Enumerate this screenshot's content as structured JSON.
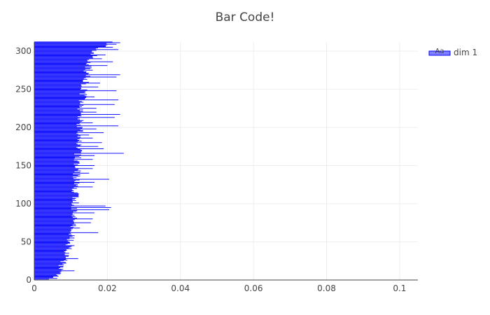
{
  "chart_data": {
    "type": "bar",
    "orientation": "horizontal",
    "title": "Bar Code!",
    "xlabel": "",
    "ylabel": "",
    "xlim": [
      0,
      0.105
    ],
    "ylim": [
      0,
      312
    ],
    "x_ticks": [
      0,
      0.02,
      0.04,
      0.06,
      0.08,
      0.1
    ],
    "x_tick_labels": [
      "0",
      "0.02",
      "0.04",
      "0.06",
      "0.08",
      "0.1"
    ],
    "y_ticks": [
      0,
      50,
      100,
      150,
      200,
      250,
      300
    ],
    "y_tick_labels": [
      "0",
      "50",
      "100",
      "150",
      "200",
      "250",
      "300"
    ],
    "grid": true,
    "legend_position": "top-right",
    "series": [
      {
        "name": "dim 1",
        "color": "#0000ff",
        "legend_icon_text": "Aa",
        "bar_count": 312,
        "base_anchors": [
          [
            1,
            0.004
          ],
          [
            5,
            0.005
          ],
          [
            10,
            0.0058
          ],
          [
            20,
            0.0066
          ],
          [
            30,
            0.0073
          ],
          [
            40,
            0.0081
          ],
          [
            50,
            0.0087
          ],
          [
            60,
            0.0091
          ],
          [
            70,
            0.0094
          ],
          [
            80,
            0.0096
          ],
          [
            90,
            0.0098
          ],
          [
            100,
            0.01
          ],
          [
            120,
            0.0103
          ],
          [
            150,
            0.0107
          ],
          [
            180,
            0.011
          ],
          [
            200,
            0.0112
          ],
          [
            220,
            0.0116
          ],
          [
            240,
            0.0122
          ],
          [
            260,
            0.0129
          ],
          [
            280,
            0.0136
          ],
          [
            290,
            0.0145
          ],
          [
            300,
            0.0158
          ],
          [
            305,
            0.0172
          ],
          [
            310,
            0.0188
          ],
          [
            312,
            0.0195
          ]
        ],
        "spikes": [
          [
            12,
            0.011
          ],
          [
            28,
            0.012
          ],
          [
            45,
            0.011
          ],
          [
            55,
            0.011
          ],
          [
            62,
            0.0175
          ],
          [
            68,
            0.0125
          ],
          [
            75,
            0.0155
          ],
          [
            80,
            0.016
          ],
          [
            88,
            0.0165
          ],
          [
            92,
            0.0205
          ],
          [
            95,
            0.021
          ],
          [
            97,
            0.0195
          ],
          [
            103,
            0.0105
          ],
          [
            122,
            0.016
          ],
          [
            128,
            0.0165
          ],
          [
            132,
            0.0205
          ],
          [
            140,
            0.015
          ],
          [
            146,
            0.016
          ],
          [
            150,
            0.0165
          ],
          [
            158,
            0.016
          ],
          [
            163,
            0.0165
          ],
          [
            166,
            0.0245
          ],
          [
            172,
            0.019
          ],
          [
            175,
            0.0175
          ],
          [
            180,
            0.0185
          ],
          [
            186,
            0.016
          ],
          [
            190,
            0.015
          ],
          [
            193,
            0.019
          ],
          [
            198,
            0.017
          ],
          [
            202,
            0.023
          ],
          [
            206,
            0.016
          ],
          [
            213,
            0.022
          ],
          [
            217,
            0.0235
          ],
          [
            220,
            0.017
          ],
          [
            225,
            0.017
          ],
          [
            230,
            0.022
          ],
          [
            236,
            0.023
          ],
          [
            240,
            0.0165
          ],
          [
            248,
            0.0225
          ],
          [
            253,
            0.0175
          ],
          [
            258,
            0.018
          ],
          [
            266,
            0.0225
          ],
          [
            269,
            0.0235
          ],
          [
            275,
            0.016
          ],
          [
            281,
            0.02
          ],
          [
            286,
            0.0215
          ],
          [
            290,
            0.0185
          ],
          [
            295,
            0.0195
          ],
          [
            302,
            0.023
          ],
          [
            305,
            0.0215
          ],
          [
            309,
            0.0225
          ],
          [
            311,
            0.0235
          ]
        ]
      }
    ]
  }
}
